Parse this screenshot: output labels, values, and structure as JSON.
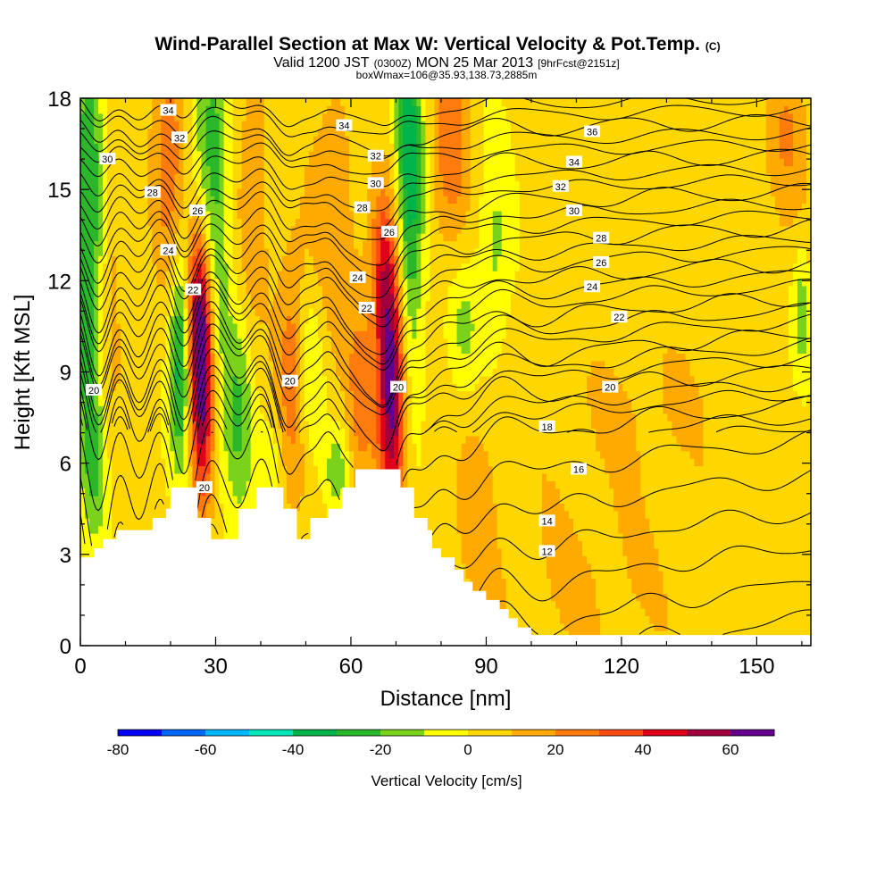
{
  "chart_data": {
    "type": "heatmap",
    "title": "Wind-Parallel Section at Max W: Vertical Velocity & Pot.Temp.",
    "title_mark": "(C)",
    "subtitle": {
      "prefix": "Valid 1200 JST",
      "utc": "(0300Z)",
      "date": "MON 25 Mar 2013",
      "forecast": "[9hrFcst@2151z]"
    },
    "box_info": "boxWmax=106@35.93,138.73,2885m",
    "xlabel": "Distance [nm]",
    "ylabel": "Height [Kft MSL]",
    "xlim": [
      0,
      162
    ],
    "ylim": [
      0,
      18
    ],
    "x_ticks": [
      0,
      30,
      60,
      90,
      120,
      150
    ],
    "y_ticks": [
      0,
      3,
      6,
      9,
      12,
      15,
      18
    ],
    "x_minor_step": 10,
    "y_minor_step": 1,
    "terrain_kft": [
      [
        0,
        2.9
      ],
      [
        3,
        2.9
      ],
      [
        3,
        3.2
      ],
      [
        5,
        3.2
      ],
      [
        5,
        3.5
      ],
      [
        8,
        3.5
      ],
      [
        8,
        3.8
      ],
      [
        16,
        3.8
      ],
      [
        16,
        4.2
      ],
      [
        19,
        4.2
      ],
      [
        19,
        4.5
      ],
      [
        20,
        4.5
      ],
      [
        20,
        5.2
      ],
      [
        26,
        5.2
      ],
      [
        26,
        4.2
      ],
      [
        29,
        4.2
      ],
      [
        29,
        3.5
      ],
      [
        35,
        3.5
      ],
      [
        35,
        4.5
      ],
      [
        39,
        4.5
      ],
      [
        39,
        5.2
      ],
      [
        45,
        5.2
      ],
      [
        45,
        4.5
      ],
      [
        48,
        4.5
      ],
      [
        48,
        3.5
      ],
      [
        51,
        3.5
      ],
      [
        51,
        4.2
      ],
      [
        55,
        4.2
      ],
      [
        55,
        4.5
      ],
      [
        58,
        4.5
      ],
      [
        58,
        5.2
      ],
      [
        61,
        5.2
      ],
      [
        61,
        5.8
      ],
      [
        71,
        5.8
      ],
      [
        71,
        5.2
      ],
      [
        74,
        5.2
      ],
      [
        74,
        4.2
      ],
      [
        77,
        4.2
      ],
      [
        77,
        3.8
      ],
      [
        78,
        3.8
      ],
      [
        78,
        3.2
      ],
      [
        80,
        3.2
      ],
      [
        80,
        2.9
      ],
      [
        83,
        2.9
      ],
      [
        83,
        2.5
      ],
      [
        85,
        2.5
      ],
      [
        85,
        2.1
      ],
      [
        87,
        2.1
      ],
      [
        87,
        1.8
      ],
      [
        90,
        1.8
      ],
      [
        90,
        1.5
      ],
      [
        93,
        1.5
      ],
      [
        93,
        1.2
      ],
      [
        95,
        1.2
      ],
      [
        95,
        0.9
      ],
      [
        97,
        0.9
      ],
      [
        97,
        0.6
      ],
      [
        100,
        0.6
      ],
      [
        100,
        0.35
      ],
      [
        162,
        0.35
      ]
    ],
    "w_features_cm_s": [
      {
        "x": 2,
        "y": 14,
        "sx": 2.5,
        "sy": 5.5,
        "w": -30
      },
      {
        "x": 2,
        "y": 9,
        "sx": 1.5,
        "sy": 2,
        "w": -10
      },
      {
        "x": 3.5,
        "y": 5.5,
        "sx": 2,
        "sy": 1.5,
        "w": -15
      },
      {
        "x": 7,
        "y": 13,
        "sx": 2,
        "sy": 5,
        "w": 12
      },
      {
        "x": 20,
        "y": 16,
        "sx": 3,
        "sy": 3,
        "w": 25
      },
      {
        "x": 22,
        "y": 9.5,
        "sx": 1.6,
        "sy": 2.5,
        "w": -40
      },
      {
        "x": 27,
        "y": 8.8,
        "sx": 1.8,
        "sy": 3,
        "w": 65
      },
      {
        "x": 26,
        "y": 11.5,
        "sx": 2,
        "sy": 2,
        "w": 30
      },
      {
        "x": 29,
        "y": 15.5,
        "sx": 3,
        "sy": 4.5,
        "w": -30
      },
      {
        "x": 35,
        "y": 7.5,
        "sx": 2.5,
        "sy": 2.5,
        "w": -25
      },
      {
        "x": 38,
        "y": 15,
        "sx": 3,
        "sy": 4,
        "w": 15
      },
      {
        "x": 47,
        "y": 9,
        "sx": 2.5,
        "sy": 3,
        "w": 25
      },
      {
        "x": 43,
        "y": 6.2,
        "sx": 2,
        "sy": 1.2,
        "w": -10
      },
      {
        "x": 51,
        "y": 9,
        "sx": 2.2,
        "sy": 2,
        "w": -20
      },
      {
        "x": 56,
        "y": 14,
        "sx": 4,
        "sy": 4,
        "w": 15
      },
      {
        "x": 57,
        "y": 5.8,
        "sx": 2,
        "sy": 1,
        "w": -20
      },
      {
        "x": 62,
        "y": 8,
        "sx": 2,
        "sy": 2.5,
        "w": 20
      },
      {
        "x": 69,
        "y": 8.5,
        "sx": 2.2,
        "sy": 3,
        "w": 65
      },
      {
        "x": 67,
        "y": 12.5,
        "sx": 2,
        "sy": 2,
        "w": 30
      },
      {
        "x": 73,
        "y": 15.5,
        "sx": 2.2,
        "sy": 4.5,
        "w": -40
      },
      {
        "x": 82,
        "y": 16.5,
        "sx": 3,
        "sy": 2.5,
        "w": 25
      },
      {
        "x": 85,
        "y": 10.5,
        "sx": 2.5,
        "sy": 1.5,
        "w": -15
      },
      {
        "x": 92,
        "y": 13,
        "sx": 2.5,
        "sy": 2.5,
        "w": -15
      },
      {
        "x": 88,
        "y": 5,
        "sx": 3,
        "sy": 2,
        "w": 10
      },
      {
        "x": 112,
        "y": 2,
        "sx": 25,
        "sy": 3,
        "w": 8
      },
      {
        "x": 125,
        "y": 8,
        "sx": 20,
        "sy": 2,
        "w": 7
      },
      {
        "x": 157,
        "y": 17,
        "sx": 3,
        "sy": 2,
        "w": 15
      },
      {
        "x": 160,
        "y": 11,
        "sx": 1.5,
        "sy": 1.5,
        "w": -20
      },
      {
        "x": 140,
        "y": 15,
        "sx": 20,
        "sy": 3,
        "w": 5
      }
    ],
    "theta_levels": [
      8,
      10,
      12,
      14,
      16,
      18,
      20,
      22,
      24,
      26,
      28,
      30,
      32,
      34,
      36
    ],
    "theta_labels": [
      {
        "text": "34",
        "x": 19.5,
        "y": 17.6
      },
      {
        "text": "32",
        "x": 22,
        "y": 16.7
      },
      {
        "text": "30",
        "x": 6,
        "y": 16
      },
      {
        "text": "28",
        "x": 16,
        "y": 14.9
      },
      {
        "text": "26",
        "x": 26,
        "y": 14.3
      },
      {
        "text": "24",
        "x": 19.5,
        "y": 13
      },
      {
        "text": "22",
        "x": 25,
        "y": 11.7
      },
      {
        "text": "20",
        "x": 3,
        "y": 8.4
      },
      {
        "text": "34",
        "x": 58.5,
        "y": 17.1
      },
      {
        "text": "32",
        "x": 65.5,
        "y": 16.1
      },
      {
        "text": "30",
        "x": 65.5,
        "y": 15.2
      },
      {
        "text": "28",
        "x": 62.5,
        "y": 14.4
      },
      {
        "text": "26",
        "x": 68.5,
        "y": 13.6
      },
      {
        "text": "24",
        "x": 61.5,
        "y": 12.1
      },
      {
        "text": "22",
        "x": 63.5,
        "y": 11.1
      },
      {
        "text": "20",
        "x": 46.5,
        "y": 8.7
      },
      {
        "text": "20",
        "x": 70.5,
        "y": 8.5
      },
      {
        "text": "20",
        "x": 27.5,
        "y": 5.2
      },
      {
        "text": "36",
        "x": 113.5,
        "y": 16.9
      },
      {
        "text": "34",
        "x": 109.5,
        "y": 15.9
      },
      {
        "text": "32",
        "x": 106.5,
        "y": 15.1
      },
      {
        "text": "30",
        "x": 109.5,
        "y": 14.3
      },
      {
        "text": "28",
        "x": 115.5,
        "y": 13.4
      },
      {
        "text": "26",
        "x": 115.5,
        "y": 12.6
      },
      {
        "text": "24",
        "x": 113.5,
        "y": 11.8
      },
      {
        "text": "22",
        "x": 119.5,
        "y": 10.8
      },
      {
        "text": "20",
        "x": 117.5,
        "y": 8.5
      },
      {
        "text": "18",
        "x": 103.5,
        "y": 7.2
      },
      {
        "text": "16",
        "x": 110.5,
        "y": 5.8
      },
      {
        "text": "14",
        "x": 103.5,
        "y": 4.1
      },
      {
        "text": "12",
        "x": 103.5,
        "y": 3.1
      }
    ]
  },
  "colorbar": {
    "label": "Vertical Velocity [cm/s]",
    "bounds": [
      -80,
      -70,
      -60,
      -50,
      -40,
      -30,
      -20,
      -10,
      0,
      10,
      20,
      30,
      40,
      50,
      60,
      70
    ],
    "colors": [
      "#0000f5",
      "#0066ff",
      "#00b8ff",
      "#00e6b8",
      "#00b44a",
      "#2ab82a",
      "#7ad21a",
      "#ffff00",
      "#ffd700",
      "#ffaa00",
      "#ff7c0c",
      "#ff4a14",
      "#e0001a",
      "#a0003c",
      "#640090"
    ],
    "tick_labels": [
      "-80",
      "-60",
      "-40",
      "-20",
      "0",
      "20",
      "40",
      "60"
    ],
    "tick_values": [
      -80,
      -60,
      -40,
      -20,
      0,
      20,
      40,
      60
    ]
  }
}
